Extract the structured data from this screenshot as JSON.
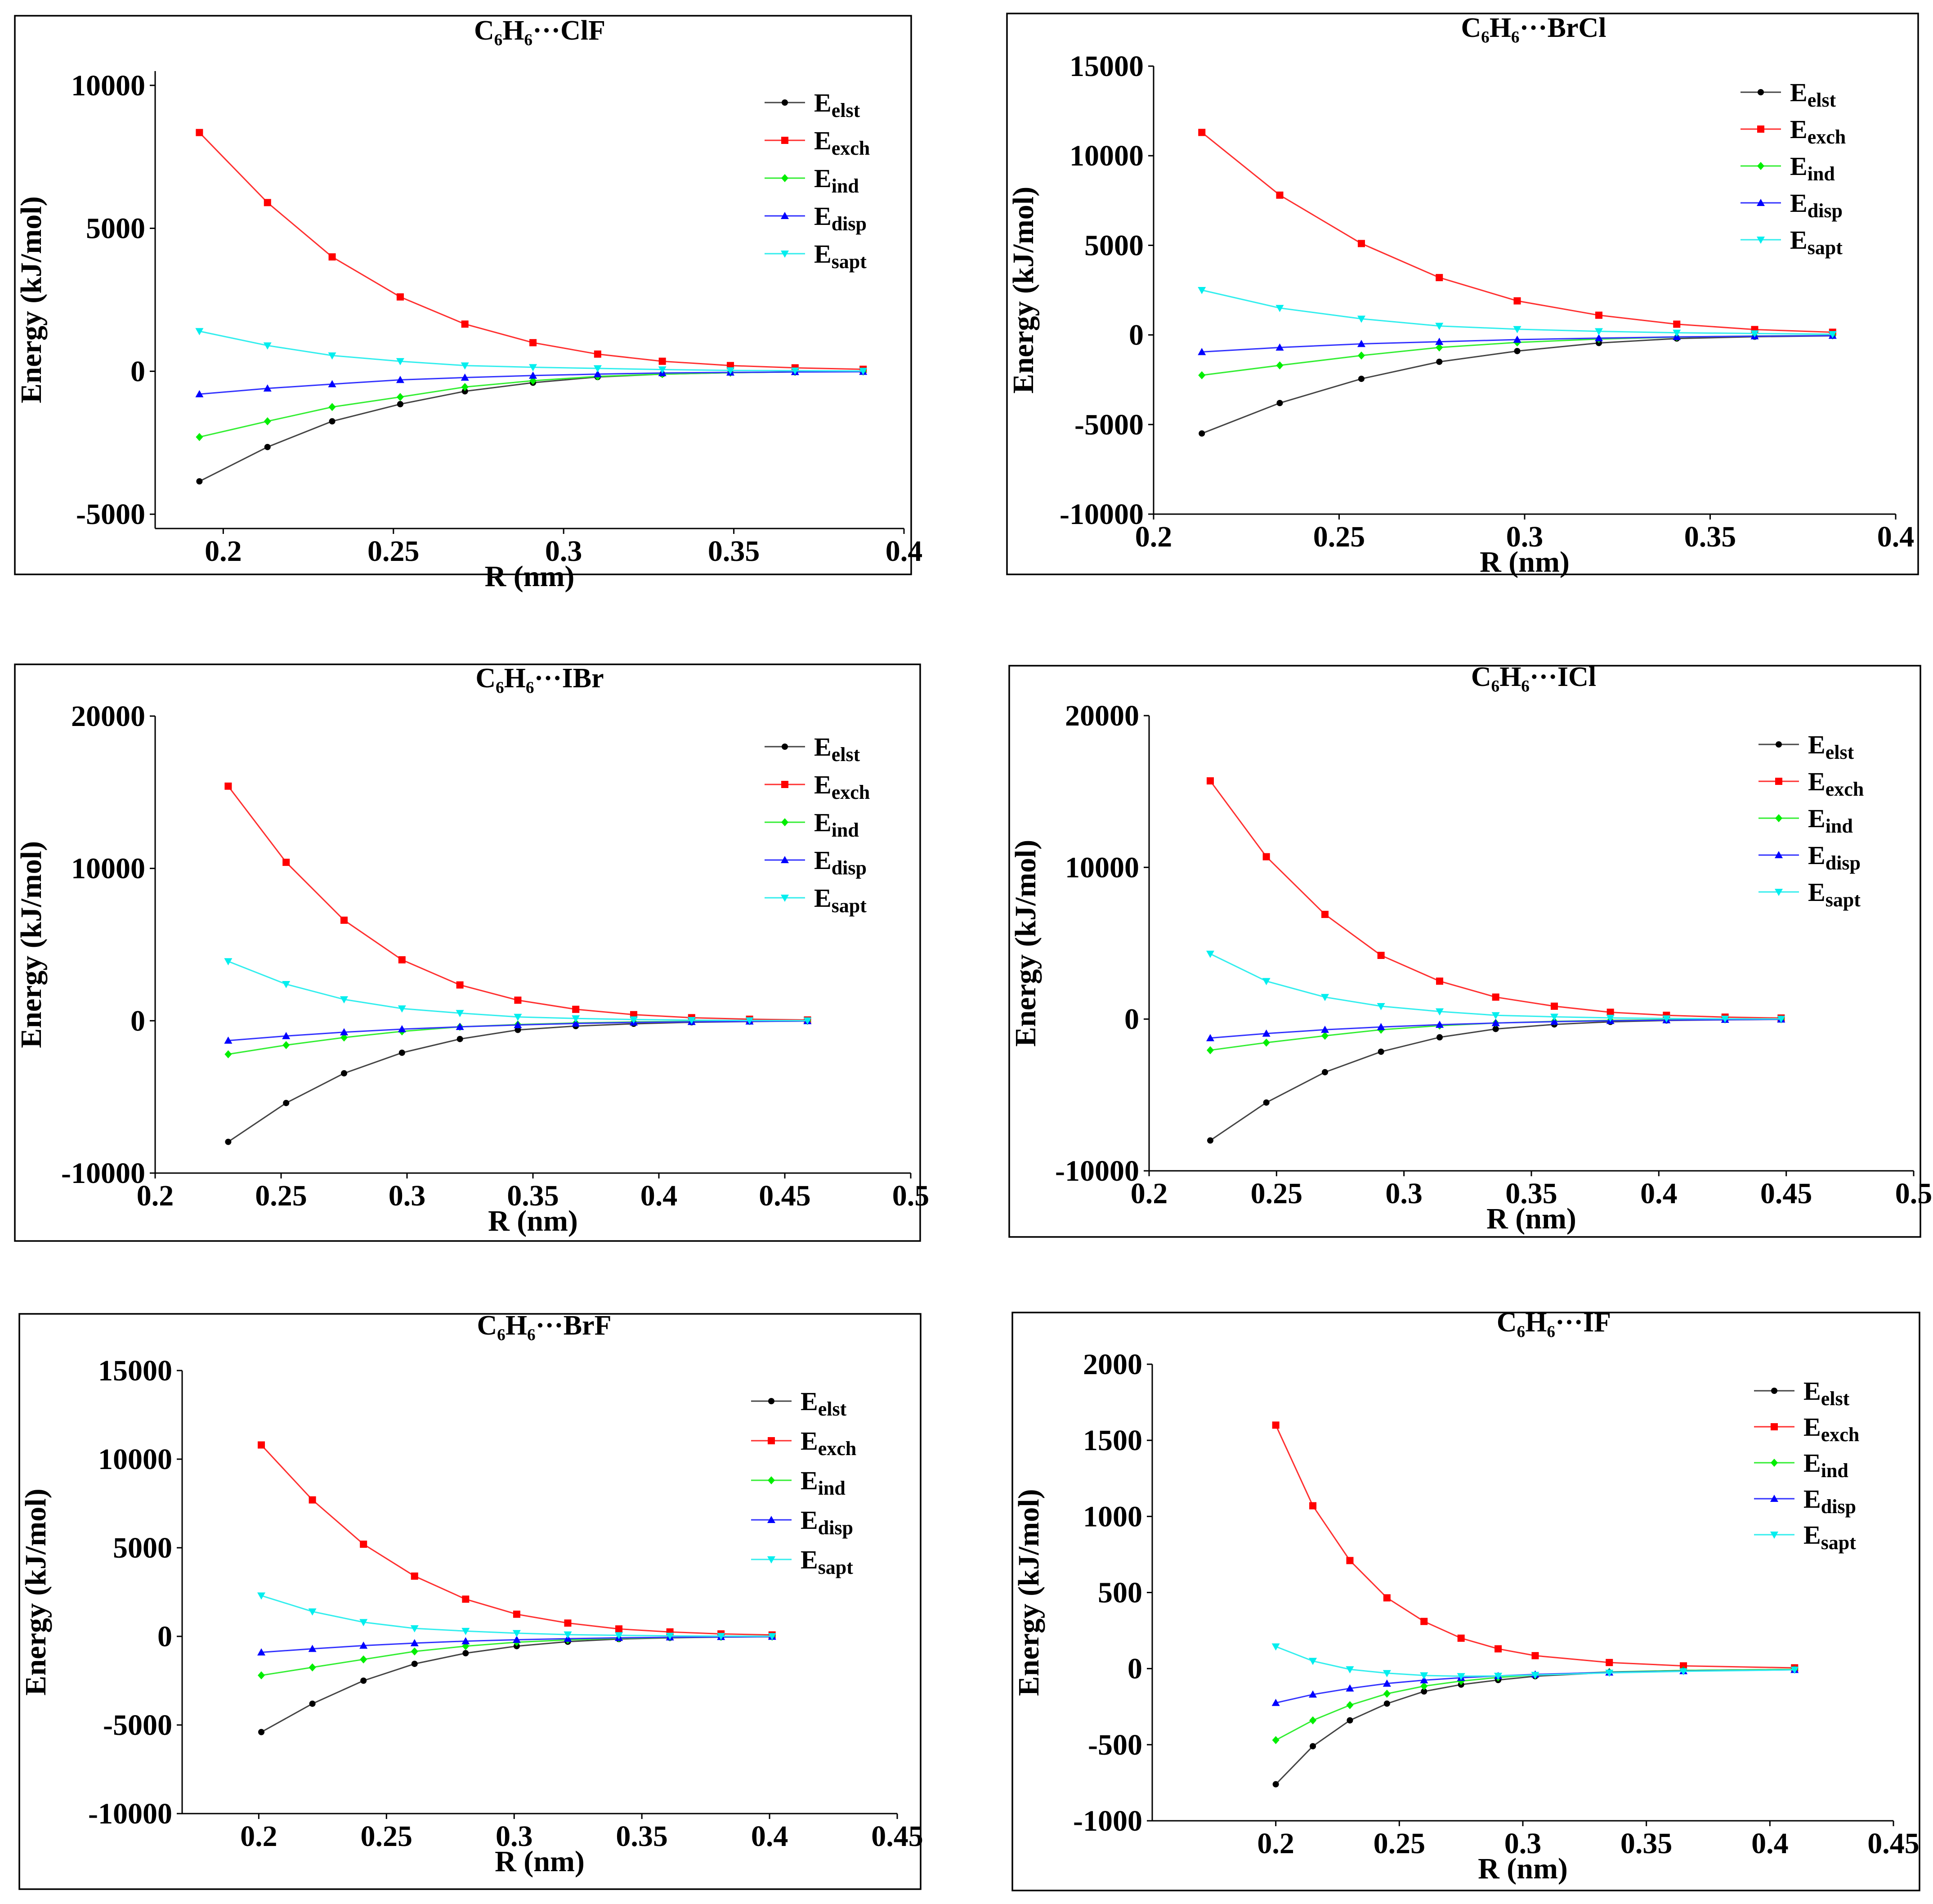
{
  "chart_data": [
    {
      "type": "line",
      "title": "C₆H₆···ClF",
      "xlabel": "R (nm)",
      "ylabel": "Energy (kJ/mol)",
      "xlim": [
        0.18,
        0.4
      ],
      "ylim": [
        -5500,
        10500
      ],
      "xticks": [
        0.2,
        0.25,
        0.3,
        0.35,
        0.4
      ],
      "xtick_labels": [
        "0.2",
        "0.25",
        "0.3",
        "0.35",
        "0.4"
      ],
      "yticks": [
        -5000,
        0,
        5000,
        10000
      ],
      "ytick_labels": [
        "-5000",
        "0",
        "5000",
        "10000"
      ],
      "x": [
        0.193,
        0.213,
        0.232,
        0.252,
        0.271,
        0.291,
        0.31,
        0.329,
        0.349,
        0.368,
        0.388
      ],
      "series": [
        {
          "name": "E_elst",
          "values": [
            -3850,
            -2650,
            -1750,
            -1150,
            -700,
            -400,
            -200,
            -100,
            -50,
            -20,
            -10
          ]
        },
        {
          "name": "E_exch",
          "values": [
            8350,
            5900,
            4000,
            2600,
            1650,
            1000,
            600,
            350,
            200,
            120,
            70
          ]
        },
        {
          "name": "E_ind",
          "values": [
            -2300,
            -1750,
            -1250,
            -900,
            -550,
            -330,
            -180,
            -100,
            -50,
            -25,
            -10
          ]
        },
        {
          "name": "E_disp",
          "values": [
            -800,
            -600,
            -450,
            -300,
            -220,
            -150,
            -100,
            -60,
            -40,
            -25,
            -15
          ]
        },
        {
          "name": "E_sapt",
          "values": [
            1400,
            900,
            550,
            350,
            200,
            140,
            100,
            60,
            30,
            20,
            10
          ]
        }
      ]
    },
    {
      "type": "line",
      "title": "C₆H₆···BrCl",
      "xlabel": "R (nm)",
      "ylabel": "Energy (kJ/mol)",
      "xlim": [
        0.2,
        0.4
      ],
      "ylim": [
        -10000,
        15000
      ],
      "xticks": [
        0.2,
        0.25,
        0.3,
        0.35,
        0.4
      ],
      "xtick_labels": [
        "0.2",
        "0.25",
        "0.3",
        "0.35",
        "0.4"
      ],
      "yticks": [
        -10000,
        -5000,
        0,
        5000,
        10000,
        15000
      ],
      "ytick_labels": [
        "-10000",
        "-5000",
        "0",
        "5000",
        "10000",
        "15000"
      ],
      "x": [
        0.213,
        0.234,
        0.256,
        0.277,
        0.298,
        0.32,
        0.341,
        0.362,
        0.383
      ],
      "series": [
        {
          "name": "E_elst",
          "values": [
            -5500,
            -3800,
            -2450,
            -1500,
            -900,
            -450,
            -200,
            -100,
            -50
          ]
        },
        {
          "name": "E_exch",
          "values": [
            11300,
            7800,
            5100,
            3200,
            1900,
            1100,
            600,
            300,
            150
          ]
        },
        {
          "name": "E_ind",
          "values": [
            -2250,
            -1700,
            -1150,
            -700,
            -420,
            -230,
            -120,
            -60,
            -30
          ]
        },
        {
          "name": "E_disp",
          "values": [
            -950,
            -700,
            -500,
            -380,
            -260,
            -180,
            -110,
            -70,
            -40
          ]
        },
        {
          "name": "E_sapt",
          "values": [
            2500,
            1500,
            900,
            500,
            320,
            200,
            120,
            80,
            40
          ]
        }
      ]
    },
    {
      "type": "line",
      "title": "C₆H₆···IBr",
      "xlabel": "R (nm)",
      "ylabel": "Energy (kJ/mol)",
      "xlim": [
        0.2,
        0.5
      ],
      "ylim": [
        -10000,
        20000
      ],
      "xticks": [
        0.2,
        0.25,
        0.3,
        0.35,
        0.4,
        0.45,
        0.5
      ],
      "xtick_labels": [
        "0.2",
        "0.25",
        "0.3",
        "0.35",
        "0.4",
        "0.45",
        "0.5"
      ],
      "yticks": [
        -10000,
        0,
        10000,
        20000
      ],
      "ytick_labels": [
        "-10000",
        "0",
        "10000",
        "20000"
      ],
      "x": [
        0.229,
        0.252,
        0.275,
        0.298,
        0.321,
        0.344,
        0.367,
        0.39,
        0.413,
        0.436,
        0.459
      ],
      "series": [
        {
          "name": "E_elst",
          "values": [
            -7950,
            -5400,
            -3450,
            -2100,
            -1200,
            -600,
            -350,
            -200,
            -100,
            -50,
            -20
          ]
        },
        {
          "name": "E_exch",
          "values": [
            15400,
            10400,
            6600,
            4000,
            2350,
            1350,
            750,
            400,
            200,
            100,
            50
          ]
        },
        {
          "name": "E_ind",
          "values": [
            -2200,
            -1600,
            -1100,
            -700,
            -400,
            -250,
            -150,
            -80,
            -40,
            -20,
            -10
          ]
        },
        {
          "name": "E_disp",
          "values": [
            -1300,
            -1000,
            -750,
            -550,
            -400,
            -280,
            -180,
            -110,
            -70,
            -40,
            -20
          ]
        },
        {
          "name": "E_sapt",
          "values": [
            3900,
            2400,
            1400,
            800,
            500,
            250,
            150,
            80,
            40,
            20,
            10
          ]
        }
      ]
    },
    {
      "type": "line",
      "title": "C₆H₆···ICl",
      "xlabel": "R (nm)",
      "ylabel": "Energy (kJ/mol)",
      "xlim": [
        0.2,
        0.5
      ],
      "ylim": [
        -10000,
        20000
      ],
      "xticks": [
        0.2,
        0.25,
        0.3,
        0.35,
        0.4,
        0.45,
        0.5
      ],
      "xtick_labels": [
        "0.2",
        "0.25",
        "0.3",
        "0.35",
        "0.4",
        "0.45",
        "0.5"
      ],
      "yticks": [
        -10000,
        0,
        10000,
        20000
      ],
      "ytick_labels": [
        "-10000",
        "0",
        "10000",
        "20000"
      ],
      "x": [
        0.224,
        0.246,
        0.269,
        0.291,
        0.314,
        0.336,
        0.359,
        0.381,
        0.403,
        0.426,
        0.448
      ],
      "series": [
        {
          "name": "E_elst",
          "values": [
            -8000,
            -5500,
            -3500,
            -2150,
            -1200,
            -650,
            -350,
            -180,
            -90,
            -45,
            -20
          ]
        },
        {
          "name": "E_exch",
          "values": [
            15700,
            10700,
            6900,
            4200,
            2500,
            1450,
            850,
            450,
            250,
            130,
            70
          ]
        },
        {
          "name": "E_ind",
          "values": [
            -2050,
            -1550,
            -1100,
            -700,
            -430,
            -260,
            -150,
            -80,
            -40,
            -20,
            -10
          ]
        },
        {
          "name": "E_disp",
          "values": [
            -1250,
            -950,
            -700,
            -520,
            -370,
            -260,
            -170,
            -110,
            -70,
            -40,
            -20
          ]
        },
        {
          "name": "E_sapt",
          "values": [
            4300,
            2500,
            1450,
            850,
            500,
            250,
            150,
            80,
            40,
            20,
            10
          ]
        }
      ]
    },
    {
      "type": "line",
      "title": "C₆H₆···BrF",
      "xlabel": "R (nm)",
      "ylabel": "Energy (kJ/mol)",
      "xlim": [
        0.17,
        0.45
      ],
      "ylim": [
        -10000,
        15000
      ],
      "xticks": [
        0.2,
        0.25,
        0.3,
        0.35,
        0.4,
        0.45
      ],
      "xtick_labels": [
        "0.2",
        "0.25",
        "0.3",
        "0.35",
        "0.4",
        "0.45"
      ],
      "yticks": [
        -10000,
        -5000,
        0,
        5000,
        10000,
        15000
      ],
      "ytick_labels": [
        "-10000",
        "-5000",
        "0",
        "5000",
        "10000",
        "15000"
      ],
      "x": [
        0.201,
        0.221,
        0.241,
        0.261,
        0.281,
        0.301,
        0.321,
        0.341,
        0.361,
        0.381,
        0.401
      ],
      "series": [
        {
          "name": "E_elst",
          "values": [
            -5400,
            -3800,
            -2500,
            -1550,
            -950,
            -550,
            -300,
            -150,
            -80,
            -40,
            -20
          ]
        },
        {
          "name": "E_exch",
          "values": [
            10800,
            7700,
            5200,
            3400,
            2100,
            1250,
            750,
            420,
            250,
            140,
            80
          ]
        },
        {
          "name": "E_ind",
          "values": [
            -2200,
            -1750,
            -1300,
            -850,
            -550,
            -330,
            -200,
            -110,
            -60,
            -30,
            -15
          ]
        },
        {
          "name": "E_disp",
          "values": [
            -900,
            -700,
            -520,
            -380,
            -270,
            -190,
            -130,
            -80,
            -50,
            -30,
            -15
          ]
        },
        {
          "name": "E_sapt",
          "values": [
            2300,
            1400,
            800,
            450,
            300,
            180,
            100,
            60,
            30,
            15,
            10
          ]
        }
      ]
    },
    {
      "type": "line",
      "title": "C₆H₆···IF",
      "xlabel": "R (nm)",
      "ylabel": "Energy (kJ/mol)",
      "xlim": [
        0.15,
        0.45
      ],
      "ylim": [
        -1000,
        2000
      ],
      "xticks": [
        0.2,
        0.25,
        0.3,
        0.35,
        0.4,
        0.45
      ],
      "xtick_labels": [
        "0.2",
        "0.25",
        "0.3",
        "0.35",
        "0.4",
        "0.45"
      ],
      "yticks": [
        -1000,
        -500,
        0,
        500,
        1000,
        1500,
        2000
      ],
      "ytick_labels": [
        "-1000",
        "-500",
        "0",
        "500",
        "1000",
        "1500",
        "2000"
      ],
      "x": [
        0.2,
        0.215,
        0.23,
        0.245,
        0.26,
        0.275,
        0.29,
        0.305,
        0.335,
        0.365,
        0.41
      ],
      "series": [
        {
          "name": "E_elst",
          "values": [
            -760,
            -510,
            -340,
            -230,
            -150,
            -105,
            -75,
            -50,
            -25,
            -12,
            -5
          ]
        },
        {
          "name": "E_exch",
          "values": [
            1600,
            1070,
            710,
            465,
            310,
            200,
            130,
            85,
            40,
            18,
            5
          ]
        },
        {
          "name": "E_ind",
          "values": [
            -470,
            -340,
            -240,
            -165,
            -115,
            -82,
            -58,
            -42,
            -22,
            -12,
            -5
          ]
        },
        {
          "name": "E_disp",
          "values": [
            -225,
            -170,
            -130,
            -98,
            -76,
            -60,
            -48,
            -38,
            -25,
            -16,
            -8
          ]
        },
        {
          "name": "E_sapt",
          "values": [
            145,
            50,
            -5,
            -30,
            -45,
            -50,
            -48,
            -42,
            -28,
            -18,
            -8
          ]
        }
      ]
    }
  ],
  "legend": [
    {
      "base": "E",
      "sub": "elst",
      "color": "#000000",
      "marker": "circle"
    },
    {
      "base": "E",
      "sub": "exch",
      "color": "#ff0000",
      "marker": "square"
    },
    {
      "base": "E",
      "sub": "ind",
      "color": "#00ee00",
      "marker": "diamond"
    },
    {
      "base": "E",
      "sub": "disp",
      "color": "#0000ff",
      "marker": "triangle-up"
    },
    {
      "base": "E",
      "sub": "sapt",
      "color": "#00eeee",
      "marker": "triangle-down"
    }
  ],
  "colors": {
    "elst": "#000000",
    "exch": "#ff0000",
    "ind": "#00ee00",
    "disp": "#0000ff",
    "sapt": "#00eeee",
    "elst_line": "#444444",
    "exch_line": "#ff3030",
    "ind_line": "#33ee33",
    "disp_line": "#3333ff",
    "sapt_line": "#33eeee"
  }
}
